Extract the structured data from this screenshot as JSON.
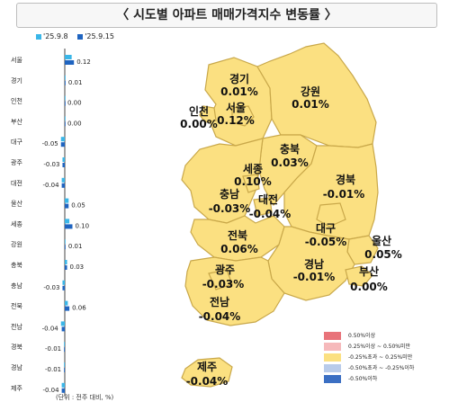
{
  "title": "〈  시도별 아파트 매매가격지수 변동률  〉",
  "footnote": "(단위 : 전주 대비, %)",
  "colors": {
    "series_prev": "#3ab6e8",
    "series_curr": "#1f64c0",
    "map_fill": "#fbe081",
    "map_stroke": "#c9a84a",
    "scale": [
      "#e8737a",
      "#f6b9bb",
      "#fbe081",
      "#b8cbea",
      "#3b6fc3"
    ]
  },
  "scale_legend": [
    {
      "label": "0.50%이상"
    },
    {
      "label": "0.25%이상 ~ 0.50%미만"
    },
    {
      "label": "-0.25%초과 ~ 0.25%미만"
    },
    {
      "label": "-0.50%초과 ~ -0.25%이하"
    },
    {
      "label": "-0.50%이하"
    }
  ],
  "chart_data": {
    "type": "bar",
    "orientation": "horizontal",
    "categories": [
      "서울",
      "경기",
      "인천",
      "부산",
      "대구",
      "광주",
      "대전",
      "울산",
      "세종",
      "강원",
      "충북",
      "충남",
      "전북",
      "전남",
      "경북",
      "경남",
      "제주"
    ],
    "series": [
      {
        "name": "'25.9.8",
        "values": [
          0.09,
          0.01,
          0.0,
          0.0,
          -0.05,
          -0.03,
          -0.04,
          0.05,
          0.06,
          0.0,
          0.03,
          -0.03,
          0.04,
          -0.05,
          -0.01,
          -0.01,
          -0.04
        ]
      },
      {
        "name": "'25.9.15",
        "values": [
          0.12,
          0.01,
          0.0,
          0.0,
          -0.05,
          -0.03,
          -0.04,
          0.05,
          0.1,
          0.01,
          0.03,
          -0.03,
          0.06,
          -0.04,
          -0.01,
          -0.01,
          -0.04
        ]
      }
    ],
    "value_labels": [
      "0.12",
      "0.01",
      "0.00",
      "0.00",
      "-0.05",
      "-0.03",
      "-0.04",
      "0.05",
      "0.10",
      "0.01",
      "0.03",
      "-0.03",
      "0.06",
      "-0.04",
      "-0.01",
      "-0.01",
      "-0.04"
    ]
  },
  "map_labels": [
    {
      "name": "경기",
      "value": "0.01%"
    },
    {
      "name": "강원",
      "value": "0.01%"
    },
    {
      "name": "인천",
      "value": "0.00%"
    },
    {
      "name": "서울",
      "value": "0.12%"
    },
    {
      "name": "충북",
      "value": "0.03%"
    },
    {
      "name": "세종",
      "value": "0.10%"
    },
    {
      "name": "경북",
      "value": "-0.01%"
    },
    {
      "name": "충남",
      "value": "-0.03%"
    },
    {
      "name": "대전",
      "value": "-0.04%"
    },
    {
      "name": "대구",
      "value": "-0.05%"
    },
    {
      "name": "울산",
      "value": "0.05%"
    },
    {
      "name": "전북",
      "value": "0.06%"
    },
    {
      "name": "광주",
      "value": "-0.03%"
    },
    {
      "name": "경남",
      "value": "-0.01%"
    },
    {
      "name": "부산",
      "value": "0.00%"
    },
    {
      "name": "전남",
      "value": "-0.04%"
    },
    {
      "name": "제주",
      "value": "-0.04%"
    }
  ]
}
